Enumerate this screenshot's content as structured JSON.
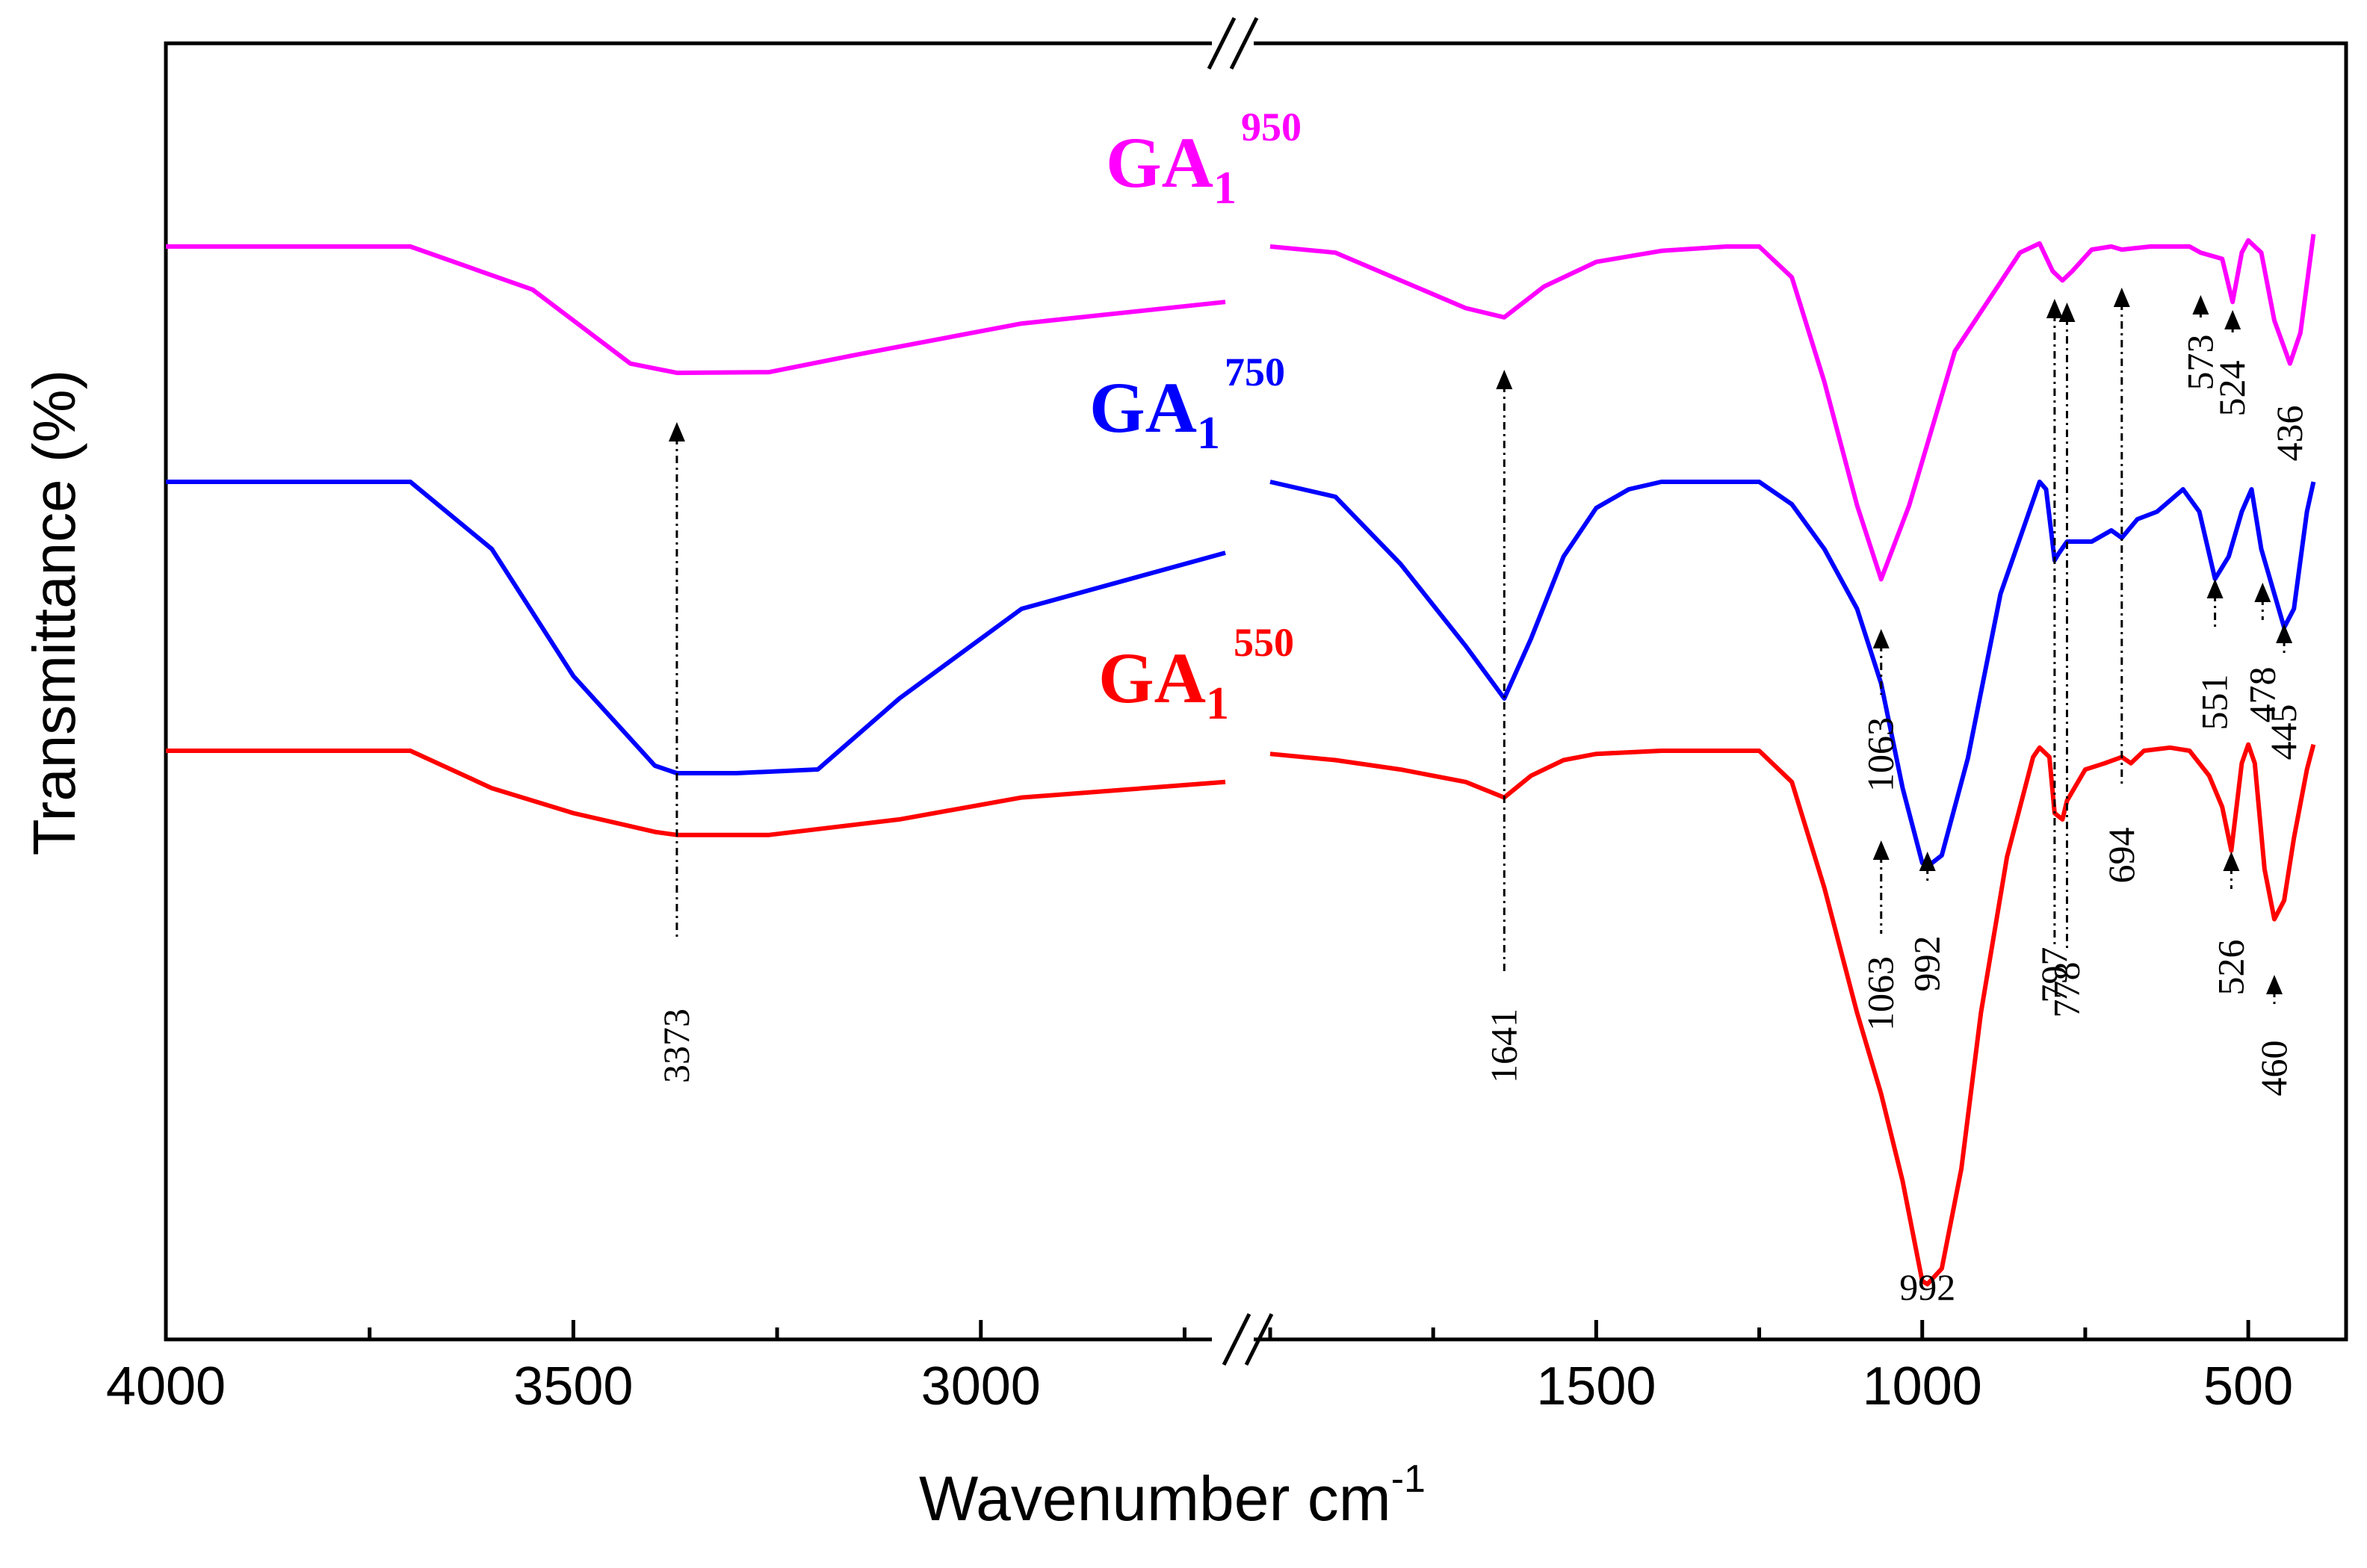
{
  "chart_data": {
    "type": "line",
    "xlabel": "Wavenumber cm",
    "xlabel_sup": "-1",
    "ylabel": "Transmittance (%)",
    "x_reversed": true,
    "axis_break": [
      2000,
      2700
    ],
    "x_segments": [
      {
        "range": [
          4000,
          2700
        ],
        "ticks": [
          4000,
          3500,
          3000
        ]
      },
      {
        "range": [
          2000,
          350
        ],
        "ticks": [
          1500,
          1000,
          500
        ]
      }
    ],
    "tick_labels": [
      "4000",
      "3500",
      "3000",
      "1500",
      "1000",
      "500"
    ],
    "series": [
      {
        "name": "GA1 950",
        "label": "GA",
        "sub": "1",
        "sup": "950",
        "color": "#ff00ff",
        "points": [
          [
            4000,
            97
          ],
          [
            3700,
            97
          ],
          [
            3550,
            90
          ],
          [
            3430,
            78
          ],
          [
            3373,
            76.5
          ],
          [
            3260,
            76.6
          ],
          [
            3150,
            79.5
          ],
          [
            2950,
            84.5
          ],
          [
            2700,
            88
          ],
          [
            2000,
            97
          ],
          [
            1900,
            96
          ],
          [
            1700,
            87
          ],
          [
            1641,
            85.5
          ],
          [
            1580,
            90.5
          ],
          [
            1500,
            94.5
          ],
          [
            1400,
            96.3
          ],
          [
            1300,
            97
          ],
          [
            1250,
            97
          ],
          [
            1200,
            92
          ],
          [
            1150,
            75
          ],
          [
            1100,
            55
          ],
          [
            1063,
            43
          ],
          [
            1020,
            55
          ],
          [
            950,
            80
          ],
          [
            850,
            96
          ],
          [
            820,
            97.5
          ],
          [
            800,
            93
          ],
          [
            785,
            91.5
          ],
          [
            770,
            93
          ],
          [
            740,
            96.5
          ],
          [
            710,
            97
          ],
          [
            694,
            96.5
          ],
          [
            650,
            97
          ],
          [
            620,
            97
          ],
          [
            590,
            97
          ],
          [
            573,
            96
          ],
          [
            540,
            95
          ],
          [
            524,
            88
          ],
          [
            510,
            96
          ],
          [
            500,
            98
          ],
          [
            480,
            96
          ],
          [
            460,
            85
          ],
          [
            436,
            78
          ],
          [
            420,
            83
          ],
          [
            400,
            99
          ]
        ]
      },
      {
        "name": "GA1 750",
        "label": "GA",
        "sub": "1",
        "sup": "750",
        "color": "#0000ff",
        "points": [
          [
            4000,
            97
          ],
          [
            3700,
            97
          ],
          [
            3600,
            88
          ],
          [
            3500,
            71
          ],
          [
            3400,
            59
          ],
          [
            3373,
            58
          ],
          [
            3300,
            58
          ],
          [
            3200,
            58.5
          ],
          [
            3100,
            68
          ],
          [
            2950,
            80
          ],
          [
            2700,
            87.5
          ],
          [
            2000,
            97
          ],
          [
            1900,
            95
          ],
          [
            1800,
            86
          ],
          [
            1700,
            75
          ],
          [
            1641,
            68
          ],
          [
            1600,
            76
          ],
          [
            1550,
            87
          ],
          [
            1500,
            93.5
          ],
          [
            1450,
            96
          ],
          [
            1400,
            97
          ],
          [
            1250,
            97
          ],
          [
            1200,
            94
          ],
          [
            1150,
            88
          ],
          [
            1100,
            80
          ],
          [
            1063,
            70
          ],
          [
            1030,
            56
          ],
          [
            1000,
            46
          ],
          [
            992,
            45.5
          ],
          [
            970,
            47
          ],
          [
            930,
            60
          ],
          [
            880,
            82
          ],
          [
            840,
            92
          ],
          [
            820,
            97
          ],
          [
            810,
            96
          ],
          [
            797,
            86.5
          ],
          [
            790,
            87.5
          ],
          [
            778,
            89
          ],
          [
            740,
            89
          ],
          [
            710,
            90.5
          ],
          [
            694,
            89.5
          ],
          [
            670,
            92
          ],
          [
            640,
            93
          ],
          [
            600,
            96
          ],
          [
            575,
            93
          ],
          [
            551,
            84
          ],
          [
            530,
            87
          ],
          [
            510,
            93
          ],
          [
            495,
            96
          ],
          [
            480,
            88
          ],
          [
            460,
            82
          ],
          [
            445,
            77.5
          ],
          [
            430,
            80
          ],
          [
            410,
            93
          ],
          [
            400,
            97
          ]
        ]
      },
      {
        "name": "GA1 550",
        "label": "GA",
        "sub": "1",
        "sup": "550",
        "color": "#ff0000",
        "points": [
          [
            4000,
            97
          ],
          [
            3700,
            97
          ],
          [
            3600,
            91
          ],
          [
            3500,
            87
          ],
          [
            3400,
            84
          ],
          [
            3373,
            83.5
          ],
          [
            3260,
            83.5
          ],
          [
            3100,
            86
          ],
          [
            2950,
            89.5
          ],
          [
            2700,
            92
          ],
          [
            2000,
            96.5
          ],
          [
            1900,
            95.5
          ],
          [
            1800,
            94
          ],
          [
            1700,
            92
          ],
          [
            1641,
            89.5
          ],
          [
            1600,
            93
          ],
          [
            1550,
            95.5
          ],
          [
            1500,
            96.5
          ],
          [
            1400,
            97
          ],
          [
            1250,
            97
          ],
          [
            1200,
            92
          ],
          [
            1150,
            75
          ],
          [
            1100,
            55
          ],
          [
            1063,
            42
          ],
          [
            1030,
            28
          ],
          [
            1000,
            12
          ],
          [
            992,
            11.5
          ],
          [
            970,
            14
          ],
          [
            940,
            30
          ],
          [
            910,
            55
          ],
          [
            870,
            80
          ],
          [
            830,
            96
          ],
          [
            820,
            97.5
          ],
          [
            805,
            96
          ],
          [
            797,
            87
          ],
          [
            785,
            86
          ],
          [
            778,
            89
          ],
          [
            750,
            94
          ],
          [
            720,
            95
          ],
          [
            694,
            96
          ],
          [
            680,
            95
          ],
          [
            660,
            97
          ],
          [
            620,
            97.5
          ],
          [
            590,
            97
          ],
          [
            560,
            93
          ],
          [
            540,
            88
          ],
          [
            526,
            81
          ],
          [
            510,
            95
          ],
          [
            500,
            98
          ],
          [
            490,
            95
          ],
          [
            475,
            78
          ],
          [
            460,
            70
          ],
          [
            445,
            73
          ],
          [
            430,
            83
          ],
          [
            410,
            94
          ],
          [
            400,
            98
          ]
        ]
      }
    ],
    "annotations": [
      {
        "label": "3373",
        "x": 3373
      },
      {
        "label": "1641",
        "x": 1641
      },
      {
        "label": "1063",
        "x": 1063,
        "series": "GA1 950"
      },
      {
        "label": "1063",
        "x": 1063,
        "series": "GA1 750"
      },
      {
        "label": "992",
        "x": 992,
        "series": "GA1 750"
      },
      {
        "label": "992",
        "x": 992,
        "series": "GA1 550"
      },
      {
        "label": "797",
        "x": 797
      },
      {
        "label": "778",
        "x": 778
      },
      {
        "label": "694",
        "x": 694
      },
      {
        "label": "573",
        "x": 573
      },
      {
        "label": "524",
        "x": 524
      },
      {
        "label": "436",
        "x": 436
      },
      {
        "label": "551",
        "x": 551
      },
      {
        "label": "478",
        "x": 478
      },
      {
        "label": "445",
        "x": 445
      },
      {
        "label": "526",
        "x": 526
      },
      {
        "label": "460",
        "x": 460
      }
    ]
  }
}
